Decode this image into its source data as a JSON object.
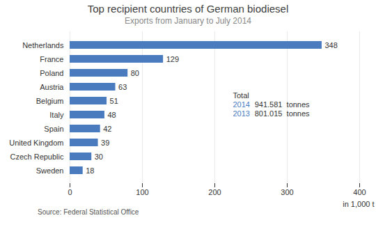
{
  "chart_data": {
    "type": "bar",
    "orientation": "horizontal",
    "title": "Top recipient countries of German biodiesel",
    "subtitle": "Exports from January to July 2014",
    "source": "Source: Federal Statistical Office",
    "categories": [
      "Netherlands",
      "France",
      "Poland",
      "Austria",
      "Belgium",
      "Italy",
      "Spain",
      "United Kingdom",
      "Czech Republic",
      "Sweden"
    ],
    "values": [
      348,
      129,
      80,
      63,
      51,
      48,
      42,
      39,
      30,
      18
    ],
    "color": "#4a7bbf",
    "xlim": [
      0,
      400
    ],
    "xticks": [
      0,
      100,
      200,
      300,
      400
    ],
    "xlabel": "in 1,000 t",
    "grid": true,
    "data_labels": true,
    "annotations": [
      [
        {
          "text": "Total",
          "color": "#333333"
        }
      ],
      [
        {
          "text": "2014",
          "color": "#4a7bbf"
        },
        {
          "text": "941.581  tonnes",
          "color": "#333333"
        }
      ],
      [
        {
          "text": "2013",
          "color": "#4a7bbf"
        },
        {
          "text": "801.015  tonnes",
          "color": "#333333"
        }
      ]
    ]
  }
}
